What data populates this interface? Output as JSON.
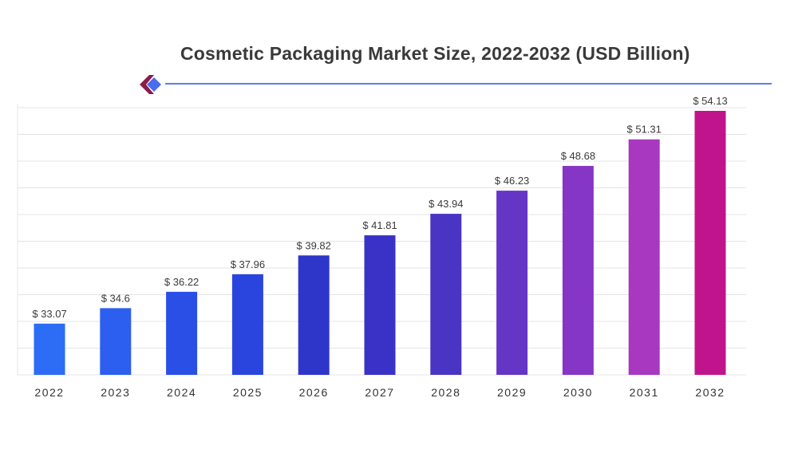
{
  "chart_data": {
    "type": "bar",
    "title": "Cosmetic Packaging Market Size, 2022-2032 (USD Billion)",
    "categories": [
      "2022",
      "2023",
      "2024",
      "2025",
      "2026",
      "2027",
      "2028",
      "2029",
      "2030",
      "2031",
      "2032"
    ],
    "values": [
      33.07,
      34.6,
      36.22,
      37.96,
      39.82,
      41.81,
      43.94,
      46.23,
      48.68,
      51.31,
      54.13
    ],
    "value_labels": [
      "$ 33.07",
      "$ 34.6",
      "$ 36.22",
      "$ 37.96",
      "$ 39.82",
      "$ 41.81",
      "$ 43.94",
      "$ 46.23",
      "$ 48.68",
      "$ 51.31",
      "$ 54.13"
    ],
    "xlabel": "",
    "ylabel": "",
    "ylim": [
      28,
      54.13
    ],
    "grid": true,
    "legend": "none",
    "colors": [
      "#2d6cf5",
      "#2c5ff0",
      "#2a4fe6",
      "#2a45de",
      "#2e36c9",
      "#3a32c6",
      "#4a34c4",
      "#6536c6",
      "#8536c4",
      "#a838c0",
      "#c0148c"
    ]
  },
  "header": {
    "accent_color": "#5b7cf2",
    "logo_icon": "brand-chevron-icon"
  }
}
